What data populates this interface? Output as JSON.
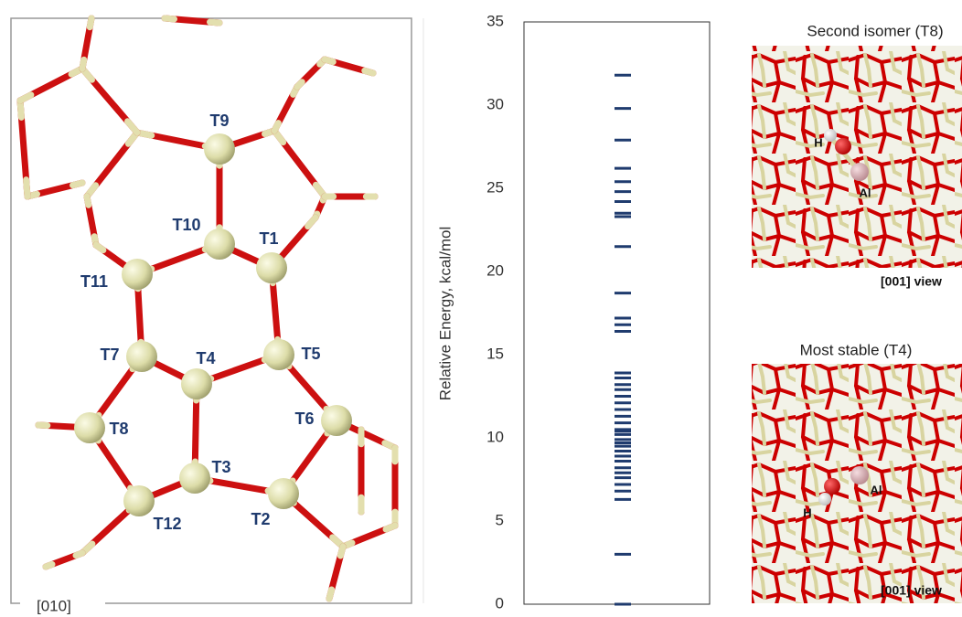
{
  "chart_data": {
    "type": "levels",
    "y_label": "Relative Energy, kcal/mol",
    "color": "#1f3b6e",
    "values": [
      31.8,
      29.8,
      27.9,
      26.2,
      25.4,
      24.8,
      24.2,
      23.5,
      23.3,
      21.5,
      18.7,
      17.2,
      16.8,
      16.4,
      13.9,
      13.6,
      13.2,
      12.9,
      12.5,
      12.1,
      11.7,
      11.3,
      10.9,
      10.5,
      10.4,
      10.2,
      9.9,
      9.7,
      9.5,
      9.2,
      8.9,
      8.6,
      8.2,
      7.9,
      7.6,
      7.2,
      6.8,
      6.3,
      3.0,
      0
    ],
    "ylim": [
      0,
      35
    ],
    "yticks": [
      0,
      5,
      10,
      15,
      20,
      25,
      30,
      35
    ]
  },
  "framework": {
    "labels": [
      "T9",
      "T10",
      "T1",
      "T11",
      "T7",
      "T4",
      "T5",
      "T8",
      "T6",
      "T3",
      "T2",
      "T12"
    ],
    "view": "[010]"
  },
  "panels": [
    {
      "title": "Second isomer (T8)",
      "view": "[001] view",
      "atoms": [
        "H",
        "Al"
      ]
    },
    {
      "title": "Most stable (T4)",
      "view": "[001] view",
      "atoms": [
        "Al",
        "H"
      ]
    }
  ]
}
